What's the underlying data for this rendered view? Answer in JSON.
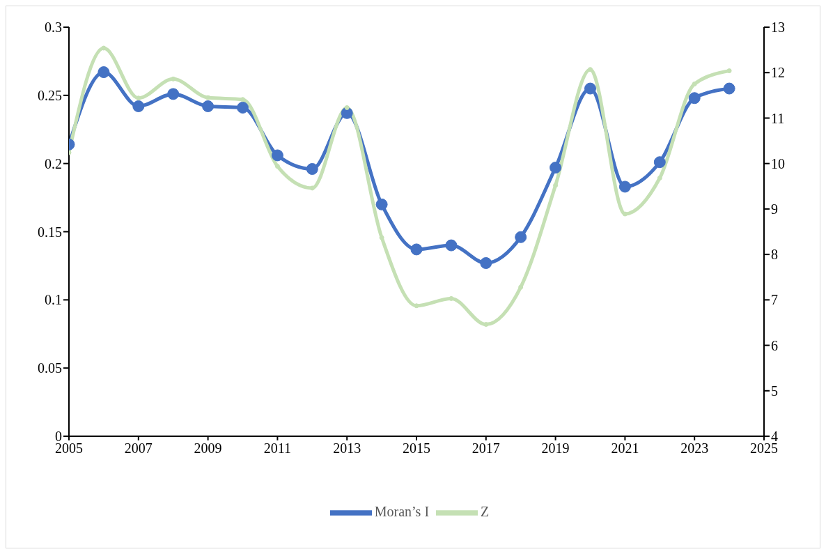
{
  "chart_data": {
    "type": "line",
    "x": [
      2005,
      2006,
      2007,
      2008,
      2009,
      2010,
      2011,
      2012,
      2013,
      2014,
      2015,
      2016,
      2017,
      2018,
      2019,
      2020,
      2021,
      2022,
      2023,
      2024
    ],
    "series": [
      {
        "name": "Moran’s I",
        "color": "#4472c4",
        "values": [
          0.214,
          0.267,
          0.242,
          0.251,
          0.242,
          0.241,
          0.206,
          0.196,
          0.237,
          0.17,
          0.137,
          0.14,
          0.127,
          0.146,
          0.197,
          0.255,
          0.183,
          0.201,
          0.248,
          0.255
        ]
      },
      {
        "name": "Z",
        "color": "#c5e0b4",
        "axis": "y2",
        "values": [
          10.24,
          12.54,
          11.44,
          11.86,
          11.45,
          11.41,
          9.94,
          9.46,
          11.23,
          8.37,
          6.87,
          7.03,
          6.46,
          7.28,
          9.52,
          12.07,
          8.89,
          9.68,
          11.75,
          12.04
        ]
      }
    ],
    "xlim": [
      2005,
      2025
    ],
    "xticks": [
      2005,
      2007,
      2009,
      2011,
      2013,
      2015,
      2017,
      2019,
      2021,
      2023,
      2025
    ],
    "ylim": [
      0,
      0.3
    ],
    "yticks": [
      0,
      0.05,
      0.1,
      0.15,
      0.2,
      0.25,
      0.3
    ],
    "y2lim": [
      4,
      13
    ],
    "y2ticks": [
      4,
      5,
      6,
      7,
      8,
      9,
      10,
      11,
      12,
      13
    ],
    "grid": false,
    "legend": "bottom",
    "marker": "circle",
    "line_style": "solid"
  }
}
